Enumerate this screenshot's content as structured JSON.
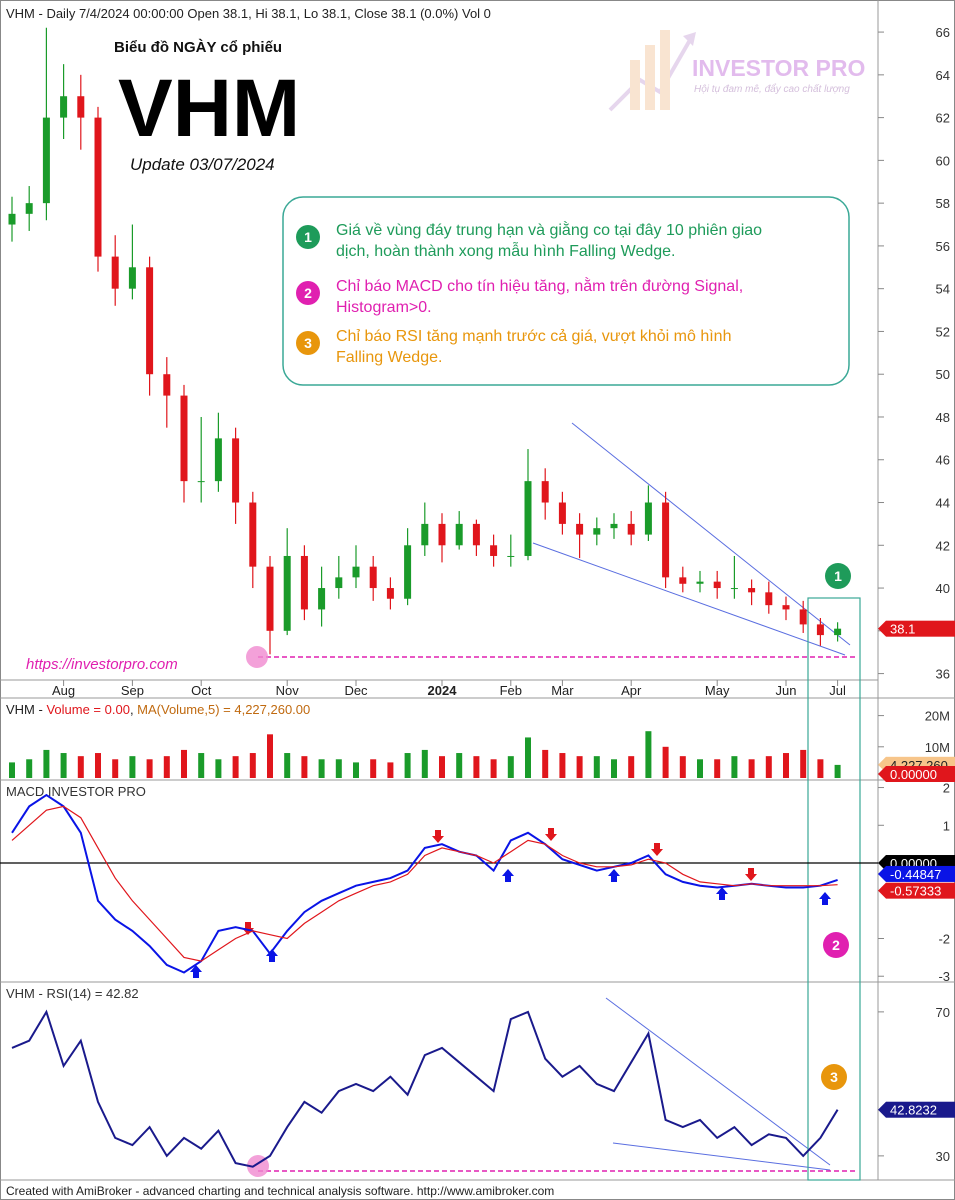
{
  "header": "VHM - Daily 7/4/2024 00:00:00 Open 38.1, Hi 38.1, Lo 38.1, Close 38.1 (0.0%) Vol 0",
  "logo": {
    "name": "INVESTOR PRO",
    "tagline": "Hội tụ đam mê, đẩy cao chất lượng"
  },
  "chart_title": {
    "pretitle": "Biểu đồ NGÀY cổ phiếu",
    "ticker": "VHM",
    "update": "Update 03/07/2024"
  },
  "notes": [
    {
      "number": "1",
      "color": "#1e9b5a",
      "lines": [
        "Giá về vùng đáy trung hạn và giằng co tại đây 10 phiên giao",
        "dịch, hoàn thành xong mẫu hình Falling Wedge."
      ]
    },
    {
      "number": "2",
      "color": "#e020b0",
      "lines": [
        "Chỉ báo MACD cho tín hiệu tăng, nằm trên đường Signal,",
        "Histogram>0."
      ]
    },
    {
      "number": "3",
      "color": "#e8960c",
      "lines": [
        "Chỉ báo RSI tăng mạnh trước cả giá, vượt khỏi mô hình",
        "Falling Wedge."
      ]
    }
  ],
  "markers": [
    "1",
    "2",
    "3"
  ],
  "url": "https://investorpro.com",
  "footer": "Created with AmiBroker - advanced charting and technical analysis software. http://www.amibroker.com",
  "chart_data": [
    {
      "type": "candlestick",
      "categories": [
        null,
        null,
        null,
        "Aug",
        null,
        null,
        null,
        "Sep",
        null,
        null,
        null,
        "Oct",
        null,
        null,
        null,
        null,
        "Nov",
        null,
        null,
        null,
        "Dec",
        null,
        null,
        null,
        null,
        "2024",
        null,
        null,
        null,
        "Feb",
        null,
        null,
        "Mar",
        null,
        null,
        null,
        "Apr",
        null,
        null,
        null,
        null,
        "May",
        null,
        null,
        null,
        "Jun",
        null,
        null,
        "Jul"
      ],
      "open": [
        57,
        57.5,
        58,
        62,
        63,
        62,
        55.5,
        54,
        55,
        50,
        49,
        45,
        45,
        47,
        44,
        41,
        38,
        41.5,
        39,
        40,
        40.5,
        41,
        40,
        39.5,
        42,
        43,
        42,
        43,
        42,
        41.5,
        41.5,
        45,
        44,
        43,
        42.5,
        42.8,
        43,
        42.5,
        44,
        40.5,
        40.2,
        40.3,
        40,
        40,
        39.8,
        39.2,
        39,
        38.3,
        37.8
      ],
      "high": [
        58.3,
        58.8,
        66.2,
        64.5,
        64,
        62.5,
        56.5,
        57,
        55.5,
        50.8,
        49.5,
        48,
        48.2,
        47.5,
        44.5,
        41.5,
        42.8,
        42,
        41,
        41.5,
        42,
        41.5,
        40.5,
        42.8,
        44,
        43.5,
        43.6,
        43.2,
        42.5,
        42.5,
        46.5,
        45.6,
        44.5,
        43.5,
        43.3,
        43.5,
        43.6,
        44.8,
        44.5,
        41,
        40.8,
        40.8,
        41.5,
        40.4,
        40.3,
        39.6,
        39.4,
        38.6,
        38.4
      ],
      "low": [
        56.2,
        56.7,
        57.2,
        61,
        60.5,
        54.8,
        53.2,
        53.5,
        49,
        47.5,
        44,
        44,
        44.5,
        43,
        40,
        36.9,
        37.8,
        38.5,
        38.2,
        39.5,
        40,
        39.4,
        39,
        39.2,
        41.5,
        41.2,
        41.8,
        41.5,
        41,
        41,
        41.3,
        43.2,
        42.5,
        41.4,
        42,
        42.3,
        42,
        42.2,
        40,
        39.8,
        39.8,
        39.5,
        39.5,
        39.2,
        38.8,
        38.5,
        37.9,
        37.3,
        37.5
      ],
      "close": [
        57.5,
        58,
        62,
        63,
        62,
        55.5,
        54,
        55,
        50,
        49,
        45,
        45,
        47,
        44,
        41,
        38,
        41.5,
        39,
        40,
        40.5,
        41,
        40,
        39.5,
        42,
        43,
        42,
        43,
        42,
        41.5,
        41.5,
        45,
        44,
        43,
        42.5,
        42.8,
        43,
        42.5,
        44,
        40.5,
        40.2,
        40.3,
        40,
        40,
        39.8,
        39.2,
        39,
        38.3,
        37.8,
        38.1
      ],
      "up_color": "#1a9b2a",
      "down_color": "#e0161c",
      "ylim": [
        35.7,
        67.5
      ],
      "yticks": [
        36,
        38,
        40,
        42,
        44,
        46,
        48,
        50,
        52,
        54,
        56,
        58,
        60,
        62,
        64,
        66
      ]
    },
    {
      "type": "bar",
      "title_parts": [
        {
          "text": "VHM - ",
          "color": "#222222"
        },
        {
          "text": "Volume = 0.00",
          "color": "#e0161c"
        },
        {
          "text": ", ",
          "color": "#222222"
        },
        {
          "text": "MA(Volume,5) = 4,227,260.00",
          "color": "#c06a10"
        }
      ],
      "values": [
        5000000,
        6000000,
        9000000,
        8000000,
        7000000,
        8000000,
        6000000,
        7000000,
        6000000,
        7000000,
        9000000,
        8000000,
        6000000,
        7000000,
        8000000,
        14000000,
        8000000,
        7000000,
        6000000,
        6000000,
        5000000,
        6000000,
        5000000,
        8000000,
        9000000,
        7000000,
        8000000,
        7000000,
        6000000,
        7000000,
        13000000,
        9000000,
        8000000,
        7000000,
        7000000,
        6000000,
        7000000,
        15000000,
        10000000,
        7000000,
        6000000,
        6000000,
        7000000,
        6000000,
        7000000,
        8000000,
        9000000,
        6000000,
        4200000
      ],
      "ylim": [
        0,
        25000000
      ],
      "yticks": [
        {
          "value": 10000000,
          "label": "10M"
        },
        {
          "value": 20000000,
          "label": "20M"
        }
      ],
      "ma_label": {
        "value": 4227260,
        "label": "4,227,260"
      },
      "last_label": {
        "value": 0,
        "label": "0.00000"
      }
    },
    {
      "type": "line",
      "title": "MACD INVESTOR PRO",
      "series": [
        {
          "color": "#0a14e6",
          "values": [
            0.8,
            1.5,
            1.8,
            1.5,
            0.8,
            -1.0,
            -1.5,
            -1.8,
            -2.2,
            -2.7,
            -2.9,
            -2.6,
            -1.8,
            -1.7,
            -1.8,
            -2.4,
            -1.8,
            -1.3,
            -1.0,
            -0.8,
            -0.6,
            -0.5,
            -0.4,
            -0.2,
            0.4,
            0.5,
            0.3,
            0.2,
            -0.2,
            0.6,
            0.8,
            0.5,
            0.1,
            -0.05,
            -0.2,
            -0.1,
            0.0,
            0.2,
            -0.3,
            -0.5,
            -0.6,
            -0.65,
            -0.6,
            -0.55,
            -0.6,
            -0.65,
            -0.65,
            -0.6,
            -0.44847
          ]
        },
        {
          "color": "#e0161c",
          "values": [
            0.6,
            1.0,
            1.4,
            1.5,
            1.2,
            0.4,
            -0.4,
            -1.0,
            -1.5,
            -2.0,
            -2.5,
            -2.6,
            -2.3,
            -2.0,
            -1.8,
            -1.9,
            -2.0,
            -1.6,
            -1.3,
            -1.0,
            -0.8,
            -0.6,
            -0.5,
            -0.3,
            0.2,
            0.4,
            0.3,
            0.2,
            0.0,
            0.3,
            0.6,
            0.5,
            0.2,
            0.0,
            -0.1,
            -0.1,
            -0.05,
            0.1,
            0.0,
            -0.3,
            -0.5,
            -0.55,
            -0.6,
            -0.55,
            -0.6,
            -0.6,
            -0.6,
            -0.6,
            -0.57333
          ]
        }
      ],
      "ylim": [
        -3.1,
        2.2
      ],
      "yticks": [
        -3,
        -2,
        1,
        2
      ],
      "zero_line": {
        "value": 0,
        "label": "0.00000"
      }
    },
    {
      "type": "line",
      "title": "VHM - RSI(14) = 42.82",
      "series": [
        {
          "color": "#1a1a8c",
          "values": [
            60,
            62,
            70,
            55,
            62,
            45,
            35,
            33,
            38,
            30,
            35,
            32,
            37,
            28,
            27,
            30,
            38,
            45,
            42,
            48,
            50,
            48,
            52,
            47,
            58,
            60,
            56,
            52,
            48,
            68,
            70,
            57,
            52,
            55,
            50,
            48,
            56,
            64,
            40,
            38,
            40,
            35,
            38,
            33,
            36,
            35,
            30,
            35,
            42.8232
          ]
        }
      ],
      "ylim": [
        23.3,
        78.3
      ],
      "yticks": [
        30,
        70
      ]
    }
  ]
}
